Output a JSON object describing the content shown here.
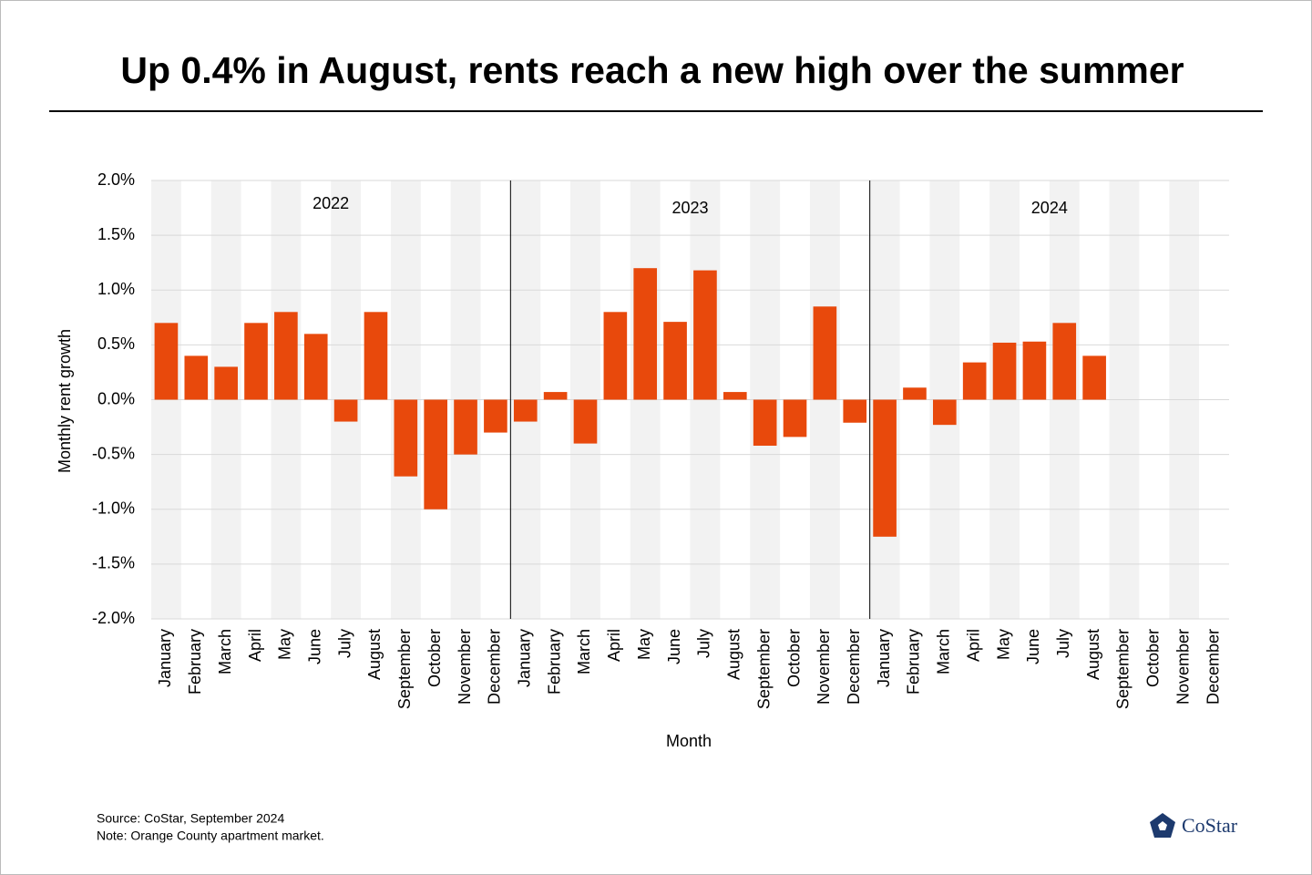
{
  "chart_data": {
    "type": "bar",
    "title": "Up 0.4% in August, rents reach a new high over the summer",
    "y_label": "Monthly rent growth",
    "x_label": "Month",
    "categories": [
      "January",
      "February",
      "March",
      "April",
      "May",
      "June",
      "July",
      "August",
      "September",
      "October",
      "November",
      "December",
      "January",
      "February",
      "March",
      "April",
      "May",
      "June",
      "July",
      "August",
      "September",
      "October",
      "November",
      "December",
      "January",
      "February",
      "March",
      "April",
      "May",
      "June",
      "July",
      "August",
      "September",
      "October",
      "November",
      "December"
    ],
    "values": [
      0.7,
      0.4,
      0.3,
      0.7,
      0.8,
      0.6,
      -0.2,
      0.8,
      -0.7,
      -1.0,
      -0.5,
      -0.3,
      -0.2,
      0.07,
      -0.4,
      0.8,
      1.2,
      0.71,
      1.18,
      0.07,
      -0.42,
      -0.34,
      0.85,
      -0.21,
      -1.25,
      0.11,
      -0.23,
      0.34,
      0.52,
      0.53,
      0.7,
      0.4,
      null,
      null,
      null,
      null
    ],
    "year_labels": [
      "2022",
      "2023",
      "2024"
    ],
    "color": "#e8490c",
    "ylim": [
      -2,
      2
    ],
    "yticks": [
      {
        "value": -2,
        "label": "-2.0%"
      },
      {
        "value": -1.5,
        "label": "-1.5%"
      },
      {
        "value": -1,
        "label": "-1.0%"
      },
      {
        "value": -0.5,
        "label": "-0.5%"
      },
      {
        "value": 0,
        "label": "0.0%"
      },
      {
        "value": 0.5,
        "label": "0.5%"
      },
      {
        "value": 1,
        "label": "1.0%"
      },
      {
        "value": 1.5,
        "label": "1.5%"
      },
      {
        "value": 2,
        "label": "2.0%"
      }
    ],
    "grid": true,
    "source": "Source: CoStar, September 2024",
    "note": "Note: Orange County apartment market.",
    "logo": "CoStar"
  }
}
